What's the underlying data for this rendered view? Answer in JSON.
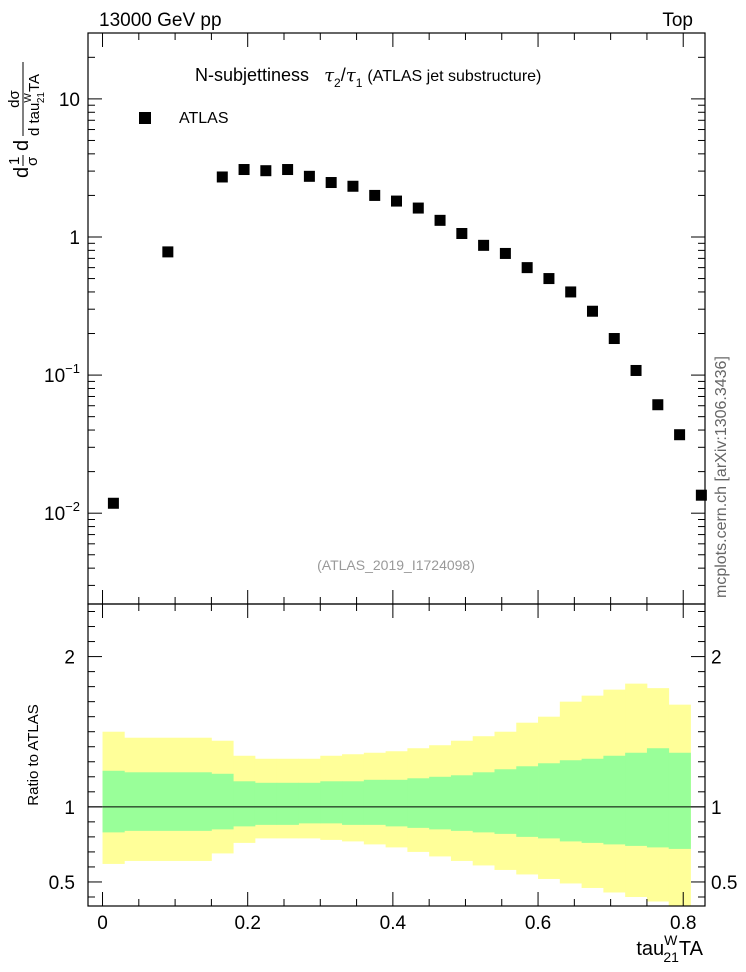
{
  "header": {
    "left": "13000 GeV pp",
    "right": "Top"
  },
  "side_label": "mcplots.cern.ch [arXiv:1306.3436]",
  "chart_data": [
    {
      "type": "scatter",
      "title": "N-subjettiness",
      "title_tau2": "τ",
      "title_sub2": "2",
      "title_slash": "/",
      "title_tau1": "τ",
      "title_sub1": "1",
      "title_suffix": "(ATLAS jet substructure)",
      "analysis_id": "(ATLAS_2019_I1724098)",
      "y_scale": "log",
      "ylim": [
        0.0022,
        30
      ],
      "ylabel_parts": {
        "d1": "d",
        "one": "1",
        "sigma": "σ",
        "d2": "d",
        "num": "dσ",
        "den": "d tau",
        "sup": "W",
        "sub": "21",
        "tail": "TA"
      },
      "yticks": [
        {
          "value": 10,
          "base": "10",
          "exp": ""
        },
        {
          "value": 1,
          "base": "1",
          "exp": ""
        },
        {
          "value": 0.1,
          "base": "10",
          "exp": "−1"
        },
        {
          "value": 0.01,
          "base": "10",
          "exp": "−2"
        }
      ],
      "legend": [
        {
          "label": "ATLAS",
          "marker": "square",
          "color": "#000000"
        }
      ],
      "series": [
        {
          "name": "ATLAS",
          "x": [
            0.015,
            0.09,
            0.165,
            0.195,
            0.225,
            0.255,
            0.285,
            0.315,
            0.345,
            0.375,
            0.405,
            0.435,
            0.465,
            0.495,
            0.525,
            0.555,
            0.585,
            0.615,
            0.645,
            0.675,
            0.705,
            0.735,
            0.765,
            0.795,
            0.825
          ],
          "values": [
            0.0118,
            0.78,
            2.72,
            3.08,
            3.02,
            3.08,
            2.75,
            2.48,
            2.33,
            2.0,
            1.82,
            1.62,
            1.32,
            1.06,
            0.87,
            0.76,
            0.6,
            0.5,
            0.4,
            0.29,
            0.184,
            0.108,
            0.061,
            0.037,
            0.0135
          ]
        }
      ]
    },
    {
      "type": "area",
      "ylabel": "Ratio to ATLAS",
      "xlabel_parts": {
        "main": "tau",
        "sup": "W",
        "sub": "21",
        "tail": "TA"
      },
      "xlim": [
        -0.02,
        0.83
      ],
      "ylim": [
        0.34,
        2.35
      ],
      "xticks": [
        "0",
        "0.2",
        "0.4",
        "0.6",
        "0.8"
      ],
      "xtick_values": [
        0,
        0.2,
        0.4,
        0.6,
        0.8
      ],
      "yticks": [
        "0.5",
        "1",
        "2"
      ],
      "ytick_values": [
        0.5,
        1,
        2
      ],
      "reference_line": 1,
      "bin_edges": [
        0,
        0.03,
        0.15,
        0.18,
        0.21,
        0.24,
        0.27,
        0.3,
        0.33,
        0.36,
        0.39,
        0.42,
        0.45,
        0.48,
        0.51,
        0.54,
        0.57,
        0.6,
        0.63,
        0.66,
        0.69,
        0.72,
        0.75,
        0.78,
        0.81
      ],
      "bands": [
        {
          "name": "outer",
          "color": "#ffff99",
          "lower": [
            0.62,
            0.64,
            0.69,
            0.76,
            0.79,
            0.79,
            0.79,
            0.78,
            0.77,
            0.75,
            0.73,
            0.7,
            0.67,
            0.64,
            0.61,
            0.58,
            0.55,
            0.52,
            0.49,
            0.46,
            0.43,
            0.4,
            0.37,
            0.34
          ],
          "upper": [
            1.5,
            1.46,
            1.44,
            1.34,
            1.32,
            1.32,
            1.32,
            1.34,
            1.35,
            1.36,
            1.37,
            1.39,
            1.41,
            1.44,
            1.47,
            1.5,
            1.56,
            1.6,
            1.7,
            1.74,
            1.78,
            1.82,
            1.79,
            1.68
          ]
        },
        {
          "name": "inner",
          "color": "#99ff99",
          "lower": [
            0.83,
            0.84,
            0.85,
            0.87,
            0.88,
            0.88,
            0.89,
            0.89,
            0.88,
            0.88,
            0.87,
            0.86,
            0.85,
            0.84,
            0.83,
            0.82,
            0.8,
            0.79,
            0.77,
            0.76,
            0.75,
            0.74,
            0.73,
            0.72
          ],
          "upper": [
            1.24,
            1.23,
            1.22,
            1.17,
            1.16,
            1.16,
            1.16,
            1.17,
            1.17,
            1.18,
            1.18,
            1.19,
            1.2,
            1.21,
            1.23,
            1.25,
            1.27,
            1.29,
            1.31,
            1.32,
            1.34,
            1.36,
            1.39,
            1.36
          ]
        }
      ]
    }
  ]
}
